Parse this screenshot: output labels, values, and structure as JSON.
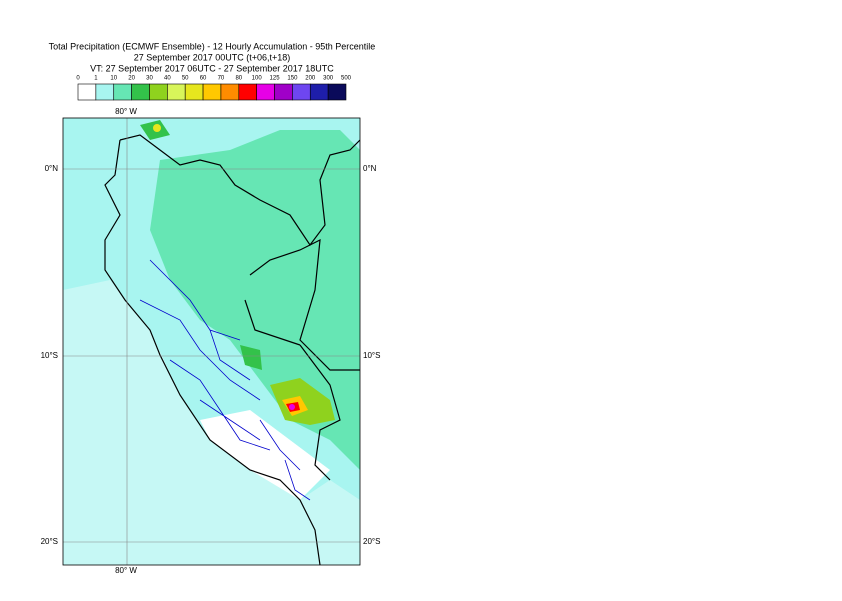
{
  "header": {
    "title": "Total Precipitation (ECMWF Ensemble) - 12 Hourly Accumulation - 95th Percentile",
    "base_time": "27 September 2017 00UTC (t+06,t+18)",
    "valid_time": "VT: 27 September 2017 06UTC - 27 September 2017 18UTC"
  },
  "legend": {
    "labels": [
      0,
      1,
      10,
      20,
      30,
      40,
      50,
      60,
      70,
      80,
      100,
      125,
      150,
      200,
      300,
      500
    ],
    "colors": [
      "#ffffff",
      "#a8f5f0",
      "#66e6b4",
      "#33c24a",
      "#8fd21e",
      "#d8f55a",
      "#e6e61e",
      "#ffc800",
      "#ff8c00",
      "#ff0000",
      "#e600e6",
      "#a000c8",
      "#6e46f0",
      "#1e1eaa",
      "#0a0a5a"
    ]
  },
  "map": {
    "lon_labels": [
      "80° W"
    ],
    "lat_labels": [
      "0°N",
      "10°S",
      "20°S"
    ]
  }
}
